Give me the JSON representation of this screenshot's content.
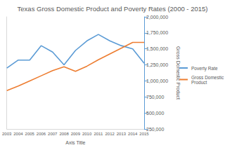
{
  "chart_data": {
    "type": "line",
    "title": "Texas Gross Domestic Product and Poverty Rates (2000 - 2015)",
    "x_label": "Axis Title",
    "y2_label": "Gross Domestic Product",
    "categories": [
      "2003",
      "2004",
      "2005",
      "2006",
      "2007",
      "2008",
      "2009",
      "2010",
      "2011",
      "2012",
      "2013",
      "2014",
      "2015"
    ],
    "series": [
      {
        "name": "Poverty Rate",
        "color": "#5b9bd5",
        "marker": "none",
        "values": [
          15.8,
          16.3,
          16.3,
          17.2,
          16.8,
          16.0,
          16.9,
          17.5,
          17.9,
          17.5,
          17.2,
          17.0,
          16.1
        ]
      },
      {
        "name": "Gross Domestic Product",
        "color": "#ed7d31",
        "marker": "none",
        "axis": "y2",
        "values": [
          850000,
          920000,
          1000000,
          1080000,
          1160000,
          1220000,
          1150000,
          1230000,
          1330000,
          1420000,
          1510000,
          1600000,
          1600000
        ]
      }
    ],
    "ylim": [
      12,
      19
    ],
    "y2lim": [
      250000,
      2000000
    ],
    "y2ticks": [
      {
        "value": 250000,
        "label": "250,000"
      },
      {
        "value": 500000,
        "label": "500,000"
      },
      {
        "value": 750000,
        "label": "750,000"
      },
      {
        "value": 1000000,
        "label": "1,000,000"
      },
      {
        "value": 1250000,
        "label": "1,250,000"
      },
      {
        "value": 1500000,
        "label": "1,500,000"
      },
      {
        "value": 1750000,
        "label": "1,750,000"
      },
      {
        "value": 2000000,
        "label": "2,000,000"
      }
    ],
    "grid": false,
    "legend": "right"
  }
}
